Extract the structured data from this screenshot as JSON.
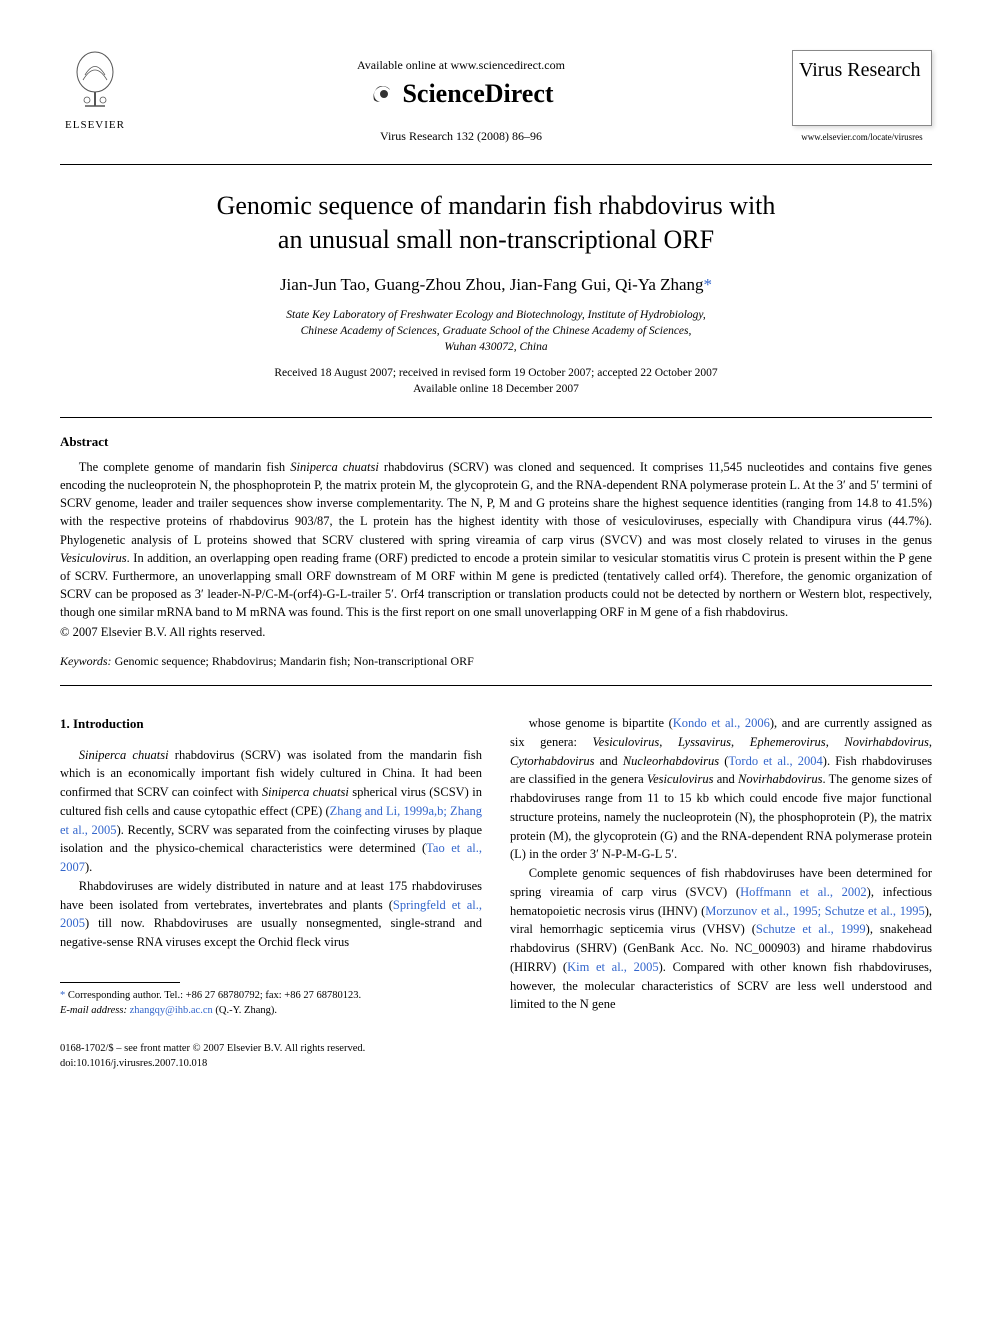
{
  "header": {
    "elsevier_label": "ELSEVIER",
    "available_text": "Available online at www.sciencedirect.com",
    "sciencedirect_label": "ScienceDirect",
    "journal_ref": "Virus Research 132 (2008) 86–96",
    "journal_box_title": "Virus Research",
    "journal_url": "www.elsevier.com/locate/virusres"
  },
  "title_line1": "Genomic sequence of mandarin fish rhabdovirus with",
  "title_line2": "an unusual small non-transcriptional ORF",
  "authors": "Jian-Jun Tao, Guang-Zhou Zhou, Jian-Fang Gui, Qi-Ya Zhang",
  "corr_mark": "*",
  "affiliation_line1": "State Key Laboratory of Freshwater Ecology and Biotechnology, Institute of Hydrobiology,",
  "affiliation_line2": "Chinese Academy of Sciences, Graduate School of the Chinese Academy of Sciences,",
  "affiliation_line3": "Wuhan 430072, China",
  "dates_line1": "Received 18 August 2007; received in revised form 19 October 2007; accepted 22 October 2007",
  "dates_line2": "Available online 18 December 2007",
  "abstract": {
    "heading": "Abstract",
    "body_html": "The complete genome of mandarin fish <i>Siniperca chuatsi</i> rhabdovirus (SCRV) was cloned and sequenced. It comprises 11,545 nucleotides and contains five genes encoding the nucleoprotein N, the phosphoprotein P, the matrix protein M, the glycoprotein G, and the RNA-dependent RNA polymerase protein L. At the 3′ and 5′ termini of SCRV genome, leader and trailer sequences show inverse complementarity. The N, P, M and G proteins share the highest sequence identities (ranging from 14.8 to 41.5%) with the respective proteins of rhabdovirus 903/87, the L protein has the highest identity with those of vesiculoviruses, especially with Chandipura virus (44.7%). Phylogenetic analysis of L proteins showed that SCRV clustered with spring vireamia of carp virus (SVCV) and was most closely related to viruses in the genus <i>Vesiculovirus</i>. In addition, an overlapping open reading frame (ORF) predicted to encode a protein similar to vesicular stomatitis virus C protein is present within the P gene of SCRV. Furthermore, an unoverlapping small ORF downstream of M ORF within M gene is predicted (tentatively called orf4). Therefore, the genomic organization of SCRV can be proposed as 3′ leader-N-P/C-M-(orf4)-G-L-trailer 5′. Orf4 transcription or translation products could not be detected by northern or Western blot, respectively, though one similar mRNA band to M mRNA was found. This is the first report on one small unoverlapping ORF in M gene of a fish rhabdovirus.",
    "copyright": "© 2007 Elsevier B.V. All rights reserved."
  },
  "keywords": {
    "label": "Keywords:",
    "text": "Genomic sequence; Rhabdovirus; Mandarin fish; Non-transcriptional ORF"
  },
  "introduction": {
    "heading": "1. Introduction",
    "col1_p1_html": "<i>Siniperca chuatsi</i> rhabdovirus (SCRV) was isolated from the mandarin fish which is an economically important fish widely cultured in China. It had been confirmed that SCRV can coinfect with <i>Siniperca chuatsi</i> spherical virus (SCSV) in cultured fish cells and cause cytopathic effect (CPE) (<span class='link'>Zhang and Li, 1999a,b; Zhang et al., 2005</span>). Recently, SCRV was separated from the coinfecting viruses by plaque isolation and the physico-chemical characteristics were determined (<span class='link'>Tao et al., 2007</span>).",
    "col1_p2_html": "Rhabdoviruses are widely distributed in nature and at least 175 rhabdoviruses have been isolated from vertebrates, invertebrates and plants (<span class='link'>Springfeld et al., 2005</span>) till now. Rhabdoviruses are usually nonsegmented, single-strand and negative-sense RNA viruses except the Orchid fleck virus",
    "col2_p1_html": "whose genome is bipartite (<span class='link'>Kondo et al., 2006</span>), and are currently assigned as six genera: <i>Vesiculovirus</i>, <i>Lyssavirus</i>, <i>Ephemerovirus</i>, <i>Novirhabdovirus</i>, <i>Cytorhabdovirus</i> and <i>Nucleorhabdovirus</i> (<span class='link'>Tordo et al., 2004</span>). Fish rhabdoviruses are classified in the genera <i>Vesiculovirus</i> and <i>Novirhabdovirus</i>. The genome sizes of rhabdoviruses range from 11 to 15 kb which could encode five major functional structure proteins, namely the nucleoprotein (N), the phosphoprotein (P), the matrix protein (M), the glycoprotein (G) and the RNA-dependent RNA polymerase protein (L) in the order 3′ N-P-M-G-L 5′.",
    "col2_p2_html": "Complete genomic sequences of fish rhabdoviruses have been determined for spring vireamia of carp virus (SVCV) (<span class='link'>Hoffmann et al., 2002</span>), infectious hematopoietic necrosis virus (IHNV) (<span class='link'>Morzunov et al., 1995; Schutze et al., 1995</span>), viral hemorrhagic septicemia virus (VHSV) (<span class='link'>Schutze et al., 1999</span>), snakehead rhabdovirus (SHRV) (GenBank Acc. No. NC_000903) and hirame rhabdovirus (HIRRV) (<span class='link'>Kim et al., 2005</span>). Compared with other known fish rhabdoviruses, however, the molecular characteristics of SCRV are less well understood and limited to the N gene"
  },
  "footnote": {
    "corr_html": "<span class='link'>*</span> Corresponding author. Tel.: +86 27 68780792; fax: +86 27 68780123.",
    "email_label": "E-mail address:",
    "email": "zhangqy@ihb.ac.cn",
    "email_name": "(Q.-Y. Zhang)."
  },
  "footer": {
    "line1": "0168-1702/$ – see front matter © 2007 Elsevier B.V. All rights reserved.",
    "line2": "doi:10.1016/j.virusres.2007.10.018"
  },
  "colors": {
    "link": "#3366cc",
    "text": "#000000",
    "bg": "#ffffff"
  }
}
